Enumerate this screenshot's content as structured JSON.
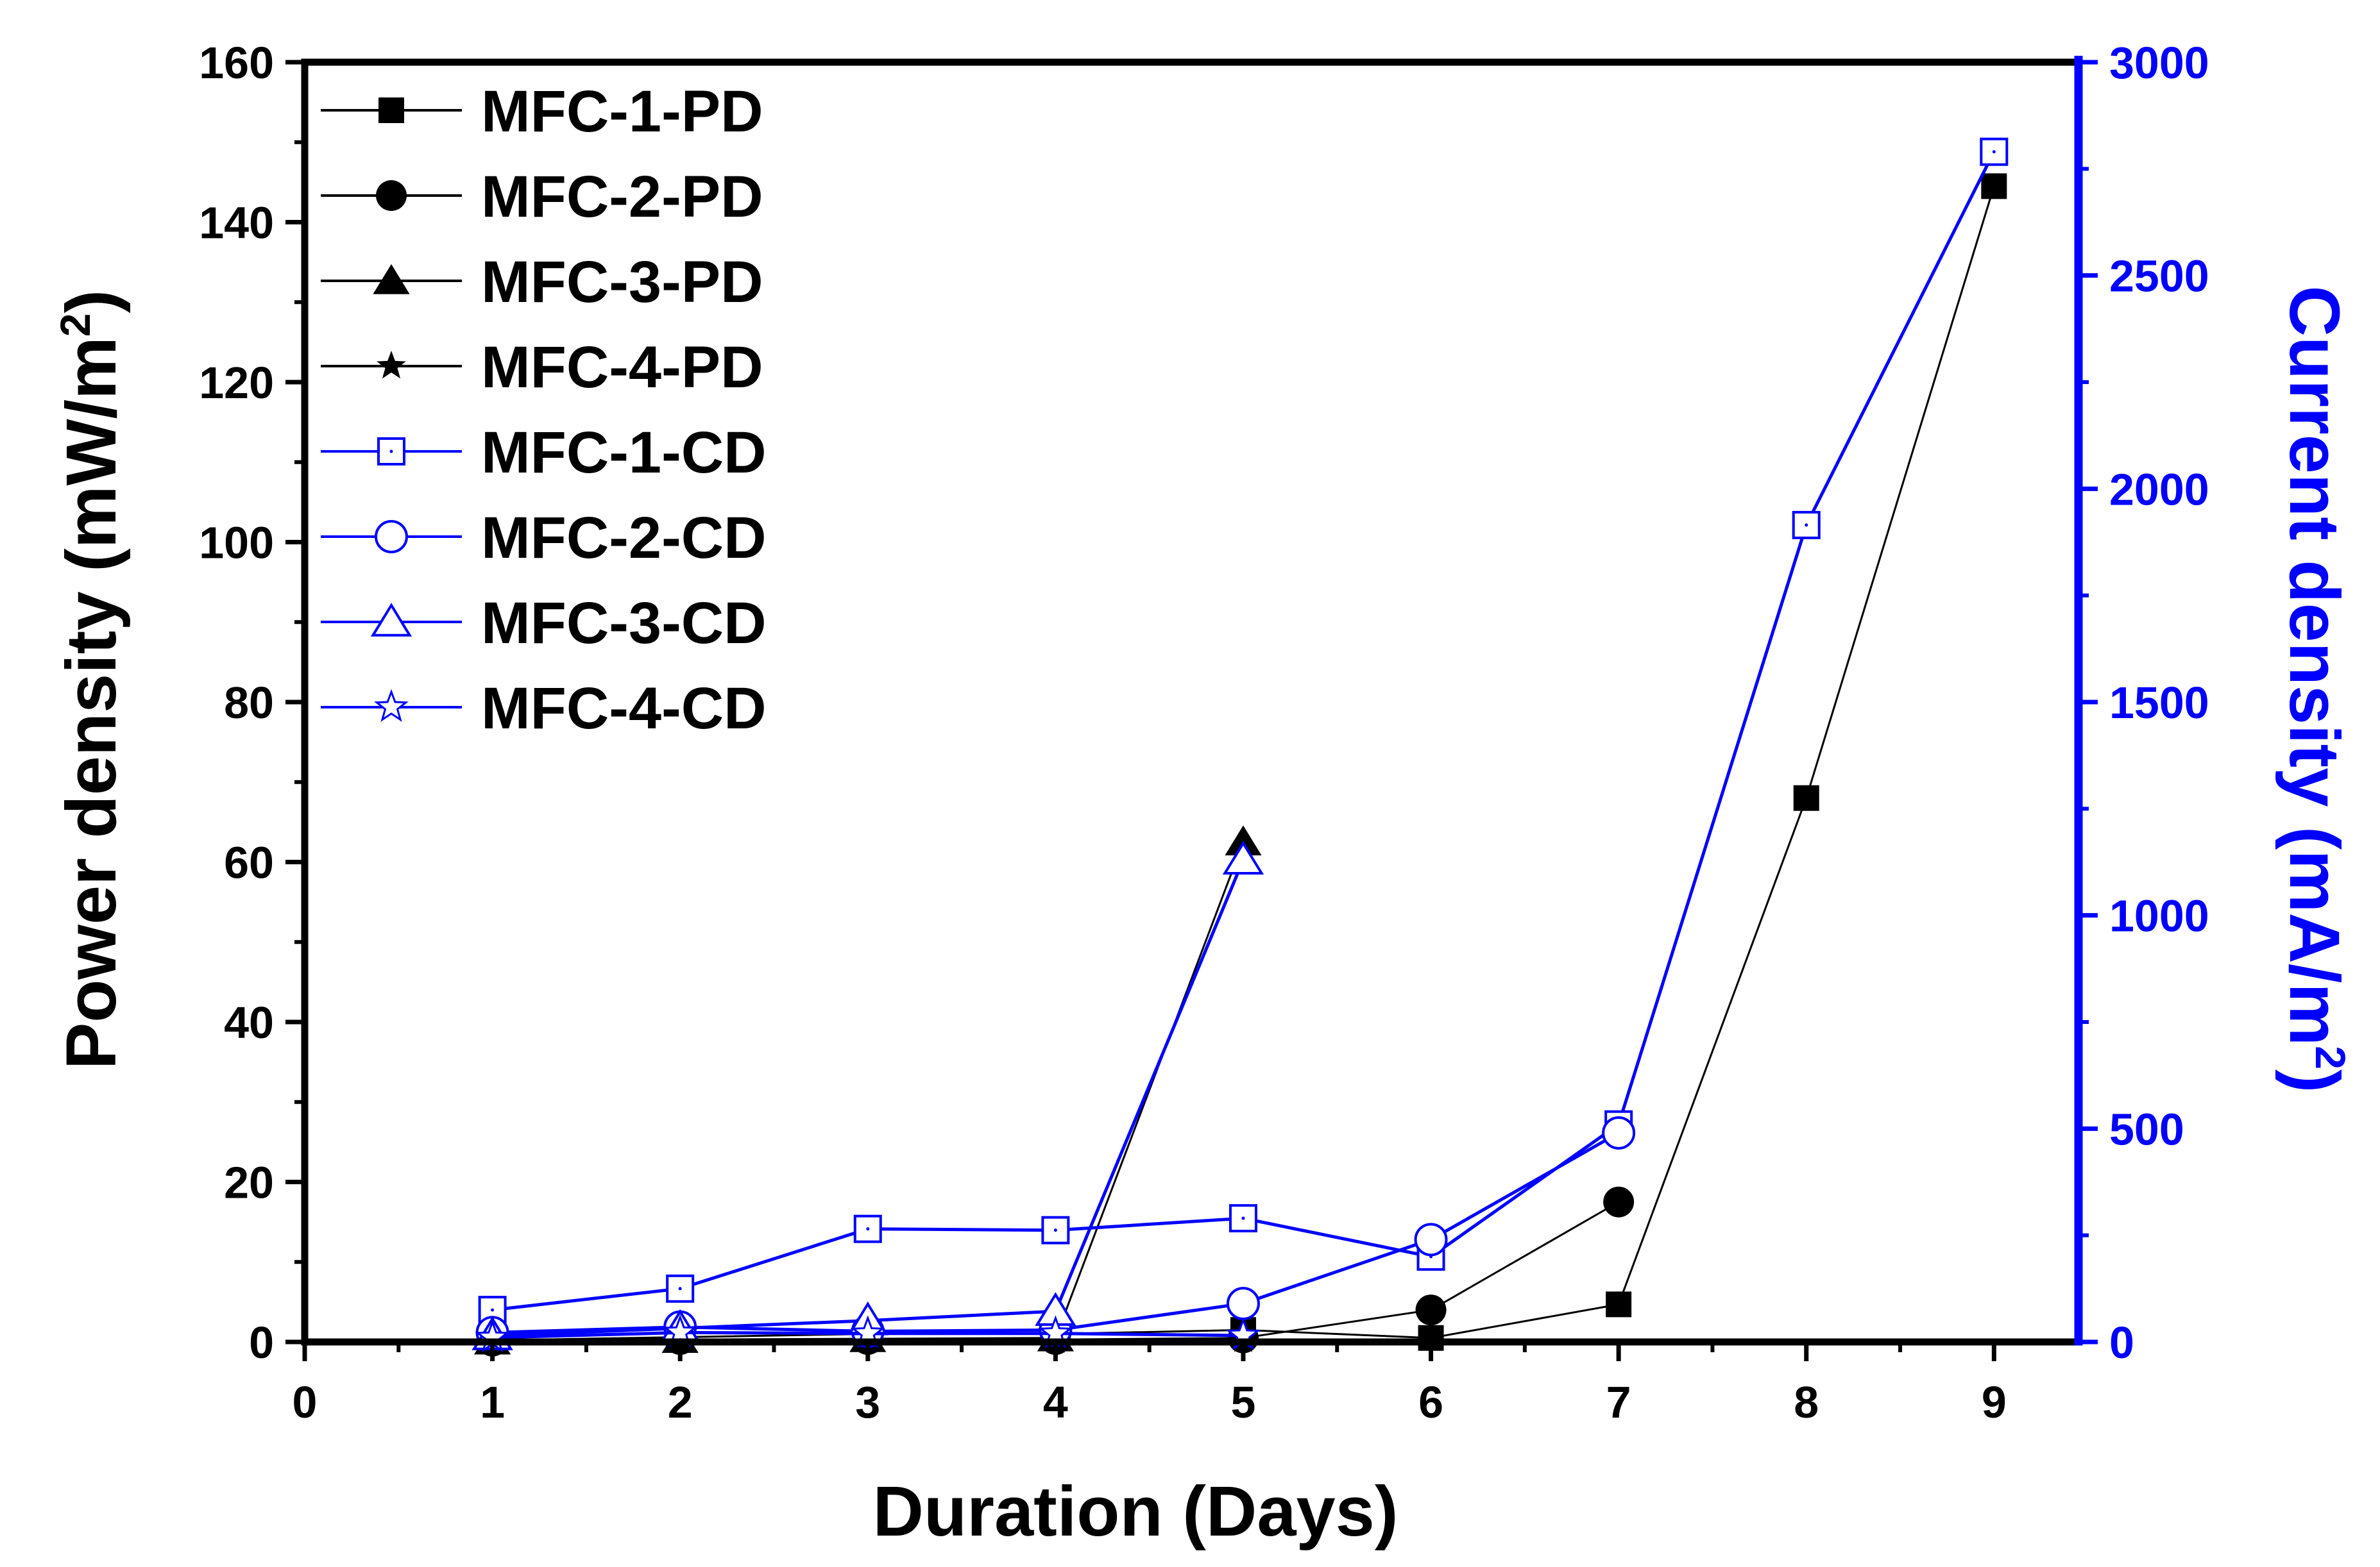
{
  "chart_data": {
    "type": "line",
    "dual_axis": true,
    "xlabel": "Duration (Days)",
    "ylabel_left": {
      "text": "Power density (mW/m",
      "sup": "2",
      "suffix": ")"
    },
    "ylabel_right": {
      "text": "Current density (mA/m",
      "sup": "2",
      "suffix": ")"
    },
    "xlim": [
      0,
      9.45
    ],
    "xticks": [
      0,
      1,
      2,
      3,
      4,
      5,
      6,
      7,
      8,
      9
    ],
    "ylim_left": [
      0,
      160
    ],
    "yticks_left": [
      0,
      20,
      40,
      60,
      80,
      100,
      120,
      140,
      160
    ],
    "ylim_right": [
      0,
      3000
    ],
    "yticks_right": [
      0,
      500,
      1000,
      1500,
      2000,
      2500,
      3000
    ],
    "colors": {
      "pd": "#000000",
      "cd": "#0000ff"
    },
    "series": [
      {
        "name": "MFC-1-PD",
        "axis": "left",
        "color": "#000000",
        "marker": "square-filled",
        "x": [
          1,
          2,
          3,
          4,
          5,
          6,
          7,
          8,
          9
        ],
        "y": [
          0.2,
          0.6,
          1.0,
          1.0,
          1.5,
          0.5,
          4.7,
          68,
          144.5
        ]
      },
      {
        "name": "MFC-2-PD",
        "axis": "left",
        "color": "#000000",
        "marker": "circle-filled",
        "x": [
          1,
          2,
          3,
          4,
          5,
          6,
          7
        ],
        "y": [
          0.1,
          0.3,
          0.3,
          0.3,
          0.5,
          4.0,
          17.5
        ]
      },
      {
        "name": "MFC-3-PD",
        "axis": "left",
        "color": "#000000",
        "marker": "triangle-filled",
        "x": [
          1,
          2,
          3,
          4,
          5
        ],
        "y": [
          0.1,
          0.3,
          0.4,
          0.5,
          62.5
        ]
      },
      {
        "name": "MFC-4-PD",
        "axis": "left",
        "color": "#000000",
        "marker": "star-filled",
        "x": [
          1,
          2,
          3,
          4,
          5
        ],
        "y": [
          0.1,
          0.2,
          0.2,
          0.2,
          0.3
        ]
      },
      {
        "name": "MFC-1-CD",
        "axis": "right",
        "color": "#0000ff",
        "marker": "square-open",
        "x": [
          1,
          2,
          3,
          4,
          5,
          6,
          7,
          8,
          9
        ],
        "y": [
          75,
          125,
          265,
          262,
          290,
          200,
          510,
          1915,
          2790
        ]
      },
      {
        "name": "MFC-2-CD",
        "axis": "right",
        "color": "#0000ff",
        "marker": "circle-open",
        "x": [
          1,
          2,
          3,
          4,
          5,
          6,
          7
        ],
        "y": [
          22,
          35,
          25,
          28,
          90,
          240,
          490
        ]
      },
      {
        "name": "MFC-3-CD",
        "axis": "right",
        "color": "#0000ff",
        "marker": "triangle-open",
        "x": [
          1,
          2,
          3,
          4,
          5
        ],
        "y": [
          15,
          32,
          50,
          72,
          1130
        ]
      },
      {
        "name": "MFC-4-CD",
        "axis": "right",
        "color": "#0000ff",
        "marker": "star-open",
        "x": [
          1,
          2,
          3,
          4,
          5
        ],
        "y": [
          10,
          22,
          20,
          20,
          15
        ]
      }
    ],
    "legend": {
      "position": "top-left"
    }
  }
}
